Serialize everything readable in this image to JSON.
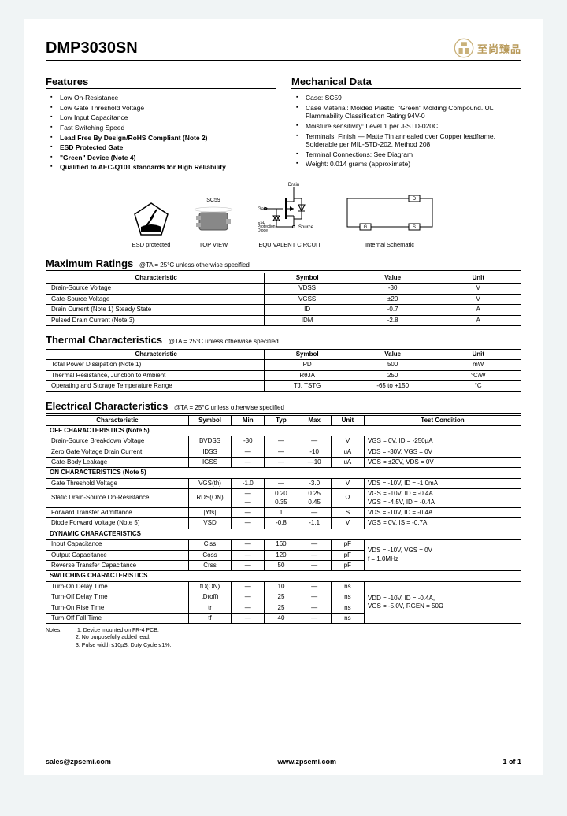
{
  "header": {
    "part_number": "DMP3030SN",
    "logo_text": "至尚臻品"
  },
  "features": {
    "title": "Features",
    "items": [
      {
        "text": "Low On-Resistance",
        "bold": false
      },
      {
        "text": "Low Gate Threshold Voltage",
        "bold": false
      },
      {
        "text": "Low Input Capacitance",
        "bold": false
      },
      {
        "text": "Fast Switching Speed",
        "bold": false
      },
      {
        "text": "Lead Free By Design/RoHS Compliant (Note 2)",
        "bold": true
      },
      {
        "text": "ESD Protected Gate",
        "bold": true
      },
      {
        "text": "\"Green\" Device (Note 4)",
        "bold": true
      },
      {
        "text": "Qualified to AEC-Q101 standards for High Reliability",
        "bold": true
      }
    ]
  },
  "mechanical": {
    "title": "Mechanical Data",
    "items": [
      {
        "text": "Case: SC59"
      },
      {
        "text": "Case Material: Molded Plastic. \"Green\" Molding Compound. UL Flammability Classification Rating 94V-0"
      },
      {
        "text": "Moisture sensitivity: Level 1 per J-STD-020C"
      },
      {
        "text": "Terminals: Finish — Matte Tin annealed over Copper leadframe. Solderable per MIL-STD-202, Method 208"
      },
      {
        "text": "Terminal Connections: See Diagram"
      },
      {
        "text": "Weight: 0.014 grams (approximate)"
      }
    ]
  },
  "diagrams": {
    "esd_label": "ESD protected",
    "top_view_label": "TOP VIEW",
    "sc59_label": "SC59",
    "equiv_label": "EQUIVALENT CIRCUIT",
    "schematic_label": "Internal Schematic",
    "pins": {
      "drain": "Drain",
      "gate": "Gate",
      "source": "Source",
      "esd": "ESD Protection Diode"
    },
    "pkg": {
      "d": "D",
      "g": "G",
      "s": "S"
    }
  },
  "max_ratings": {
    "title": "Maximum Ratings",
    "condition": "@TA = 25°C unless otherwise specified",
    "headers": [
      "Characteristic",
      "Symbol",
      "Value",
      "Unit"
    ],
    "rows": [
      [
        "Drain-Source Voltage",
        "VDSS",
        "-30",
        "V"
      ],
      [
        "Gate-Source Voltage",
        "VGSS",
        "±20",
        "V"
      ],
      [
        "Drain Current (Note 1) Steady State",
        "ID",
        "-0.7",
        "A"
      ],
      [
        "Pulsed Drain Current (Note 3)",
        "IDM",
        "-2.8",
        "A"
      ]
    ]
  },
  "thermal": {
    "title": "Thermal Characteristics",
    "condition": "@TA = 25°C unless otherwise specified",
    "headers": [
      "Characteristic",
      "Symbol",
      "Value",
      "Unit"
    ],
    "rows": [
      [
        "Total Power Dissipation (Note 1)",
        "PD",
        "500",
        "mW"
      ],
      [
        "Thermal Resistance, Junction to Ambient",
        "RθJA",
        "250",
        "°C/W"
      ],
      [
        "Operating and Storage Temperature Range",
        "TJ, TSTG",
        "-65 to +150",
        "°C"
      ]
    ]
  },
  "electrical": {
    "title": "Electrical Characteristics",
    "condition": "@TA = 25°C unless otherwise specified",
    "headers": [
      "Characteristic",
      "Symbol",
      "Min",
      "Typ",
      "Max",
      "Unit",
      "Test Condition"
    ],
    "sections": [
      {
        "name": "OFF CHARACTERISTICS (Note 5)",
        "rows": [
          {
            "c": "Drain-Source Breakdown Voltage",
            "sym": "BVDSS",
            "min": "-30",
            "typ": "—",
            "max": "—",
            "unit": "V",
            "tc": "VGS = 0V, ID = -250µA"
          },
          {
            "c": "Zero Gate Voltage Drain Current",
            "sym": "IDSS",
            "min": "—",
            "typ": "—",
            "max": "-10",
            "unit": "uA",
            "tc": "VDS = -30V, VGS = 0V"
          },
          {
            "c": "Gate-Body Leakage",
            "sym": "IGSS",
            "min": "—",
            "typ": "—",
            "max": "—10",
            "unit": "uA",
            "tc": "VGS = ±20V, VDS = 0V"
          }
        ]
      },
      {
        "name": "ON CHARACTERISTICS (Note 5)",
        "rows": [
          {
            "c": "Gate Threshold Voltage",
            "sym": "VGS(th)",
            "min": "-1.0",
            "typ": "—",
            "max": "-3.0",
            "unit": "V",
            "tc": "VDS = -10V, ID = -1.0mA"
          },
          {
            "c": "Static Drain-Source On-Resistance",
            "sym": "RDS(ON)",
            "min": "—\n—",
            "typ": "0.20\n0.35",
            "max": "0.25\n0.45",
            "unit": "Ω",
            "tc": "VGS = -10V, ID = -0.4A\nVGS = -4.5V, ID = -0.4A",
            "rowspan": 1
          },
          {
            "c": "Forward Transfer Admittance",
            "sym": "|Yfs|",
            "min": "—",
            "typ": "1",
            "max": "—",
            "unit": "S",
            "tc": "VDS = -10V, ID = -0.4A"
          },
          {
            "c": "Diode Forward Voltage (Note 5)",
            "sym": "VSD",
            "min": "—",
            "typ": "-0.8",
            "max": "-1.1",
            "unit": "V",
            "tc": "VGS = 0V, IS = -0.7A"
          }
        ]
      },
      {
        "name": "DYNAMIC CHARACTERISTICS",
        "rows": [
          {
            "c": "Input Capacitance",
            "sym": "Ciss",
            "min": "—",
            "typ": "160",
            "max": "—",
            "unit": "pF",
            "tc_shared": true
          },
          {
            "c": "Output Capacitance",
            "sym": "Coss",
            "min": "—",
            "typ": "120",
            "max": "—",
            "unit": "pF",
            "tc_shared": true
          },
          {
            "c": "Reverse Transfer Capacitance",
            "sym": "Crss",
            "min": "—",
            "typ": "50",
            "max": "—",
            "unit": "pF",
            "tc_shared": true
          }
        ],
        "shared_tc": "VDS = -10V, VGS = 0V\nf = 1.0MHz"
      },
      {
        "name": "SWITCHING CHARACTERISTICS",
        "rows": [
          {
            "c": "Turn-On Delay Time",
            "sym": "tD(ON)",
            "min": "—",
            "typ": "10",
            "max": "—",
            "unit": "ns",
            "tc_shared": true
          },
          {
            "c": "Turn-Off Delay Time",
            "sym": "tD(off)",
            "min": "—",
            "typ": "25",
            "max": "—",
            "unit": "ns",
            "tc_shared": true
          },
          {
            "c": "Turn-On Rise Time",
            "sym": "tr",
            "min": "—",
            "typ": "25",
            "max": "—",
            "unit": "ns",
            "tc_shared": true
          },
          {
            "c": "Turn-Off Fall Time",
            "sym": "tf",
            "min": "—",
            "typ": "40",
            "max": "—",
            "unit": "ns",
            "tc_shared": true
          }
        ],
        "shared_tc": "VDD = -10V, ID = -0.4A,\nVGS = -5.0V, RGEN = 50Ω"
      }
    ]
  },
  "notes": {
    "label": "Notes:",
    "items": [
      "1. Device mounted on FR-4 PCB.",
      "2. No purposefully added lead.",
      "3. Pulse width ≤10µS, Duty Cycle ≤1%."
    ]
  },
  "footer": {
    "email": "sales@zpsemi.com",
    "url": "www.zpsemi.com",
    "page": "1 of 1"
  },
  "style": {
    "accent": "#b89a5a"
  }
}
